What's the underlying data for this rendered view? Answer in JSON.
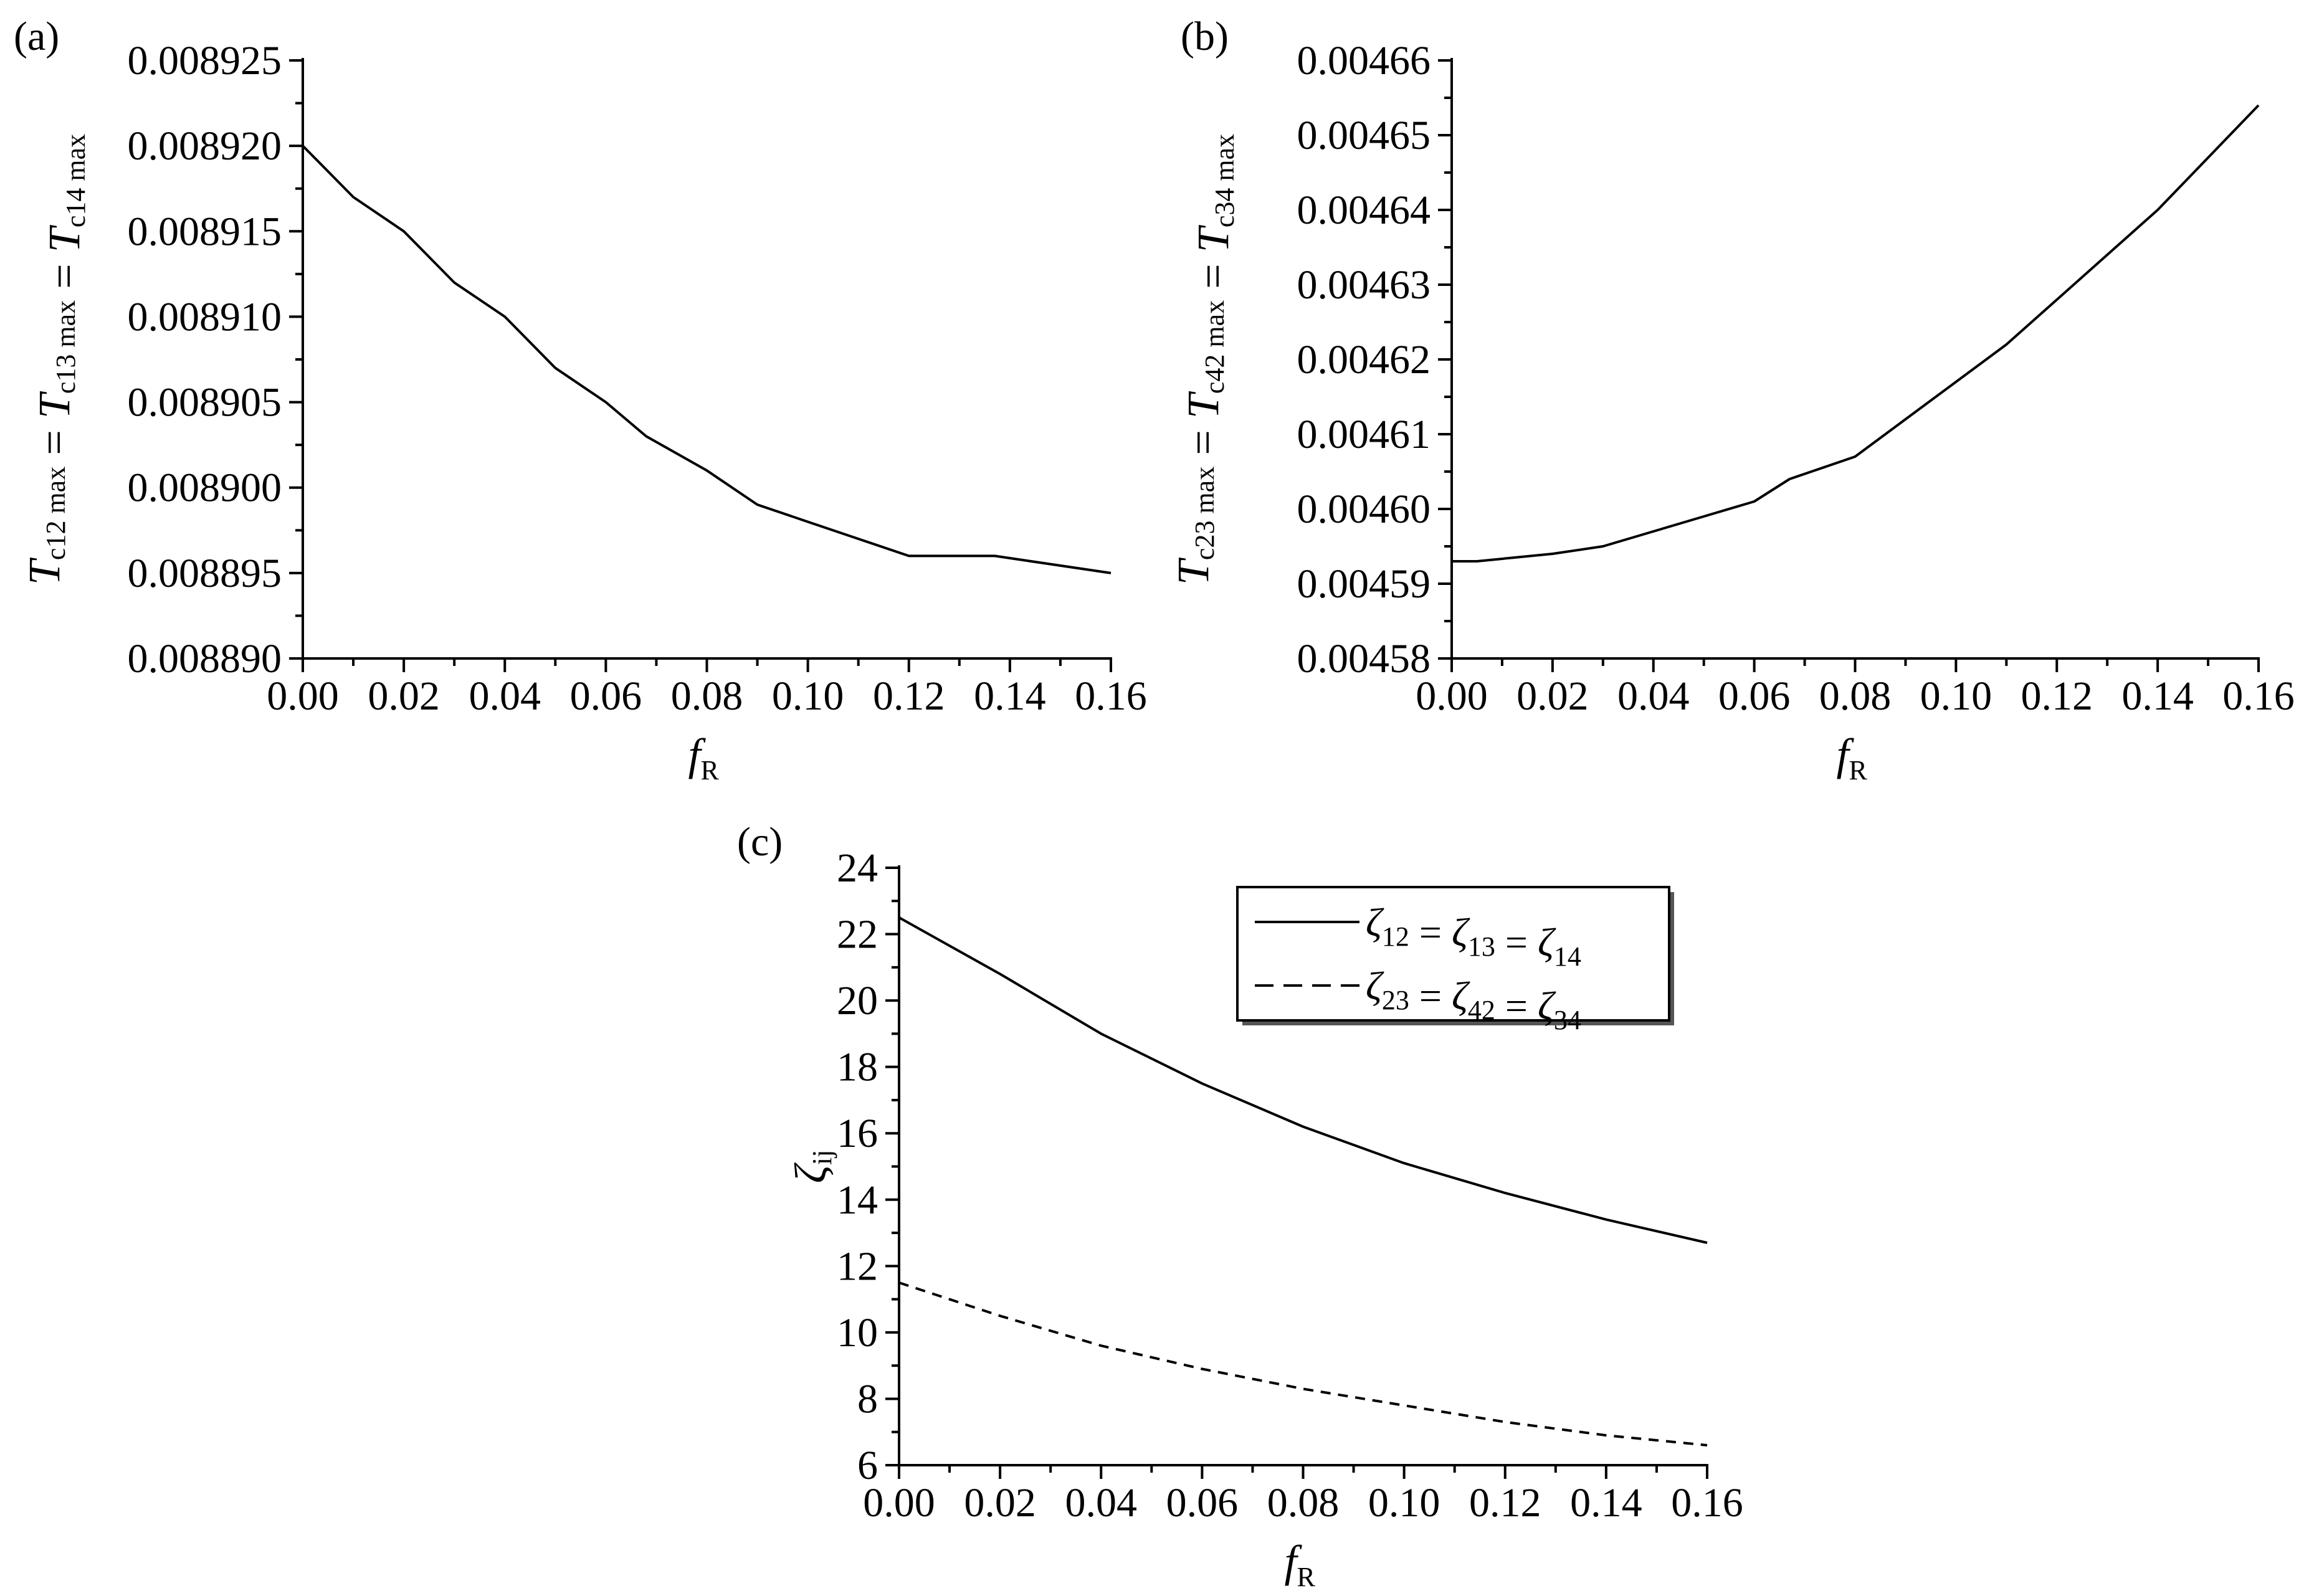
{
  "chart_data": [
    {
      "type": "line",
      "panel_label": "(a)",
      "x": [
        0.0,
        0.01,
        0.02,
        0.03,
        0.04,
        0.05,
        0.06,
        0.068,
        0.08,
        0.09,
        0.1,
        0.11,
        0.12,
        0.137,
        0.16
      ],
      "series": [
        {
          "values": [
            0.00892,
            0.008917,
            0.008915,
            0.008912,
            0.00891,
            0.008907,
            0.008905,
            0.008903,
            0.008901,
            0.008899,
            0.008898,
            0.008897,
            0.008896,
            0.008896,
            0.008895
          ]
        }
      ],
      "xlim": [
        0.0,
        0.16
      ],
      "ylim": [
        0.00889,
        0.008925
      ],
      "xticks": [
        "0.00",
        "0.02",
        "0.04",
        "0.06",
        "0.08",
        "0.10",
        "0.12",
        "0.14",
        "0.16"
      ],
      "yticks": [
        "0.008890",
        "0.008895",
        "0.008900",
        "0.008905",
        "0.008910",
        "0.008915",
        "0.008920",
        "0.008925"
      ],
      "xlabel": {
        "main": "f",
        "sub": "R"
      },
      "ylabel": [
        {
          "main": "T",
          "sub": "c12 max"
        },
        {
          "op": " = "
        },
        {
          "main": "T",
          "sub": "c13 max"
        },
        {
          "op": " = "
        },
        {
          "main": "T",
          "sub": "c14 max"
        }
      ]
    },
    {
      "type": "line",
      "panel_label": "(b)",
      "x": [
        0.0,
        0.005,
        0.02,
        0.03,
        0.04,
        0.05,
        0.06,
        0.067,
        0.08,
        0.09,
        0.1,
        0.11,
        0.12,
        0.13,
        0.14,
        0.15,
        0.16
      ],
      "series": [
        {
          "values": [
            0.004593,
            0.004593,
            0.004594,
            0.004595,
            0.004597,
            0.004599,
            0.004601,
            0.004604,
            0.004607,
            0.004612,
            0.004617,
            0.004622,
            0.004628,
            0.004634,
            0.00464,
            0.004647,
            0.004654
          ]
        }
      ],
      "xlim": [
        0.0,
        0.16
      ],
      "ylim": [
        0.00458,
        0.00466
      ],
      "xticks": [
        "0.00",
        "0.02",
        "0.04",
        "0.06",
        "0.08",
        "0.10",
        "0.12",
        "0.14",
        "0.16"
      ],
      "yticks": [
        "0.00458",
        "0.00459",
        "0.00460",
        "0.00461",
        "0.00462",
        "0.00463",
        "0.00464",
        "0.00465",
        "0.00466"
      ],
      "xlabel": {
        "main": "f",
        "sub": "R"
      },
      "ylabel": [
        {
          "main": "T",
          "sub": "c23 max"
        },
        {
          "op": " = "
        },
        {
          "main": "T",
          "sub": "c42 max"
        },
        {
          "op": " = "
        },
        {
          "main": "T",
          "sub": "c34 max"
        }
      ]
    },
    {
      "type": "line",
      "panel_label": "(c)",
      "x": [
        0.0,
        0.02,
        0.04,
        0.06,
        0.08,
        0.1,
        0.12,
        0.14,
        0.16
      ],
      "series": [
        {
          "name": [
            {
              "main": "ζ",
              "sub": "12"
            },
            {
              "op": " = "
            },
            {
              "main": "ζ",
              "sub": "13"
            },
            {
              "op": " = "
            },
            {
              "main": "ζ",
              "sub": "14"
            }
          ],
          "style": "solid",
          "values": [
            22.5,
            20.8,
            19.0,
            17.5,
            16.2,
            15.1,
            14.2,
            13.4,
            12.7
          ]
        },
        {
          "name": [
            {
              "main": "ζ",
              "sub": "23"
            },
            {
              "op": " = "
            },
            {
              "main": "ζ",
              "sub": "42"
            },
            {
              "op": " = "
            },
            {
              "main": "ζ",
              "sub": "34"
            }
          ],
          "style": "dashed",
          "values": [
            11.5,
            10.5,
            9.6,
            8.9,
            8.3,
            7.8,
            7.3,
            6.9,
            6.6
          ]
        }
      ],
      "xlim": [
        0.0,
        0.16
      ],
      "ylim": [
        6,
        24
      ],
      "xticks": [
        "0.00",
        "0.02",
        "0.04",
        "0.06",
        "0.08",
        "0.10",
        "0.12",
        "0.14",
        "0.16"
      ],
      "yticks": [
        "6",
        "8",
        "10",
        "12",
        "14",
        "16",
        "18",
        "20",
        "22",
        "24"
      ],
      "xlabel": {
        "main": "f",
        "sub": "R"
      },
      "ylabel": {
        "main": "ζ",
        "sub": "ij"
      },
      "legend": "top-right"
    }
  ]
}
